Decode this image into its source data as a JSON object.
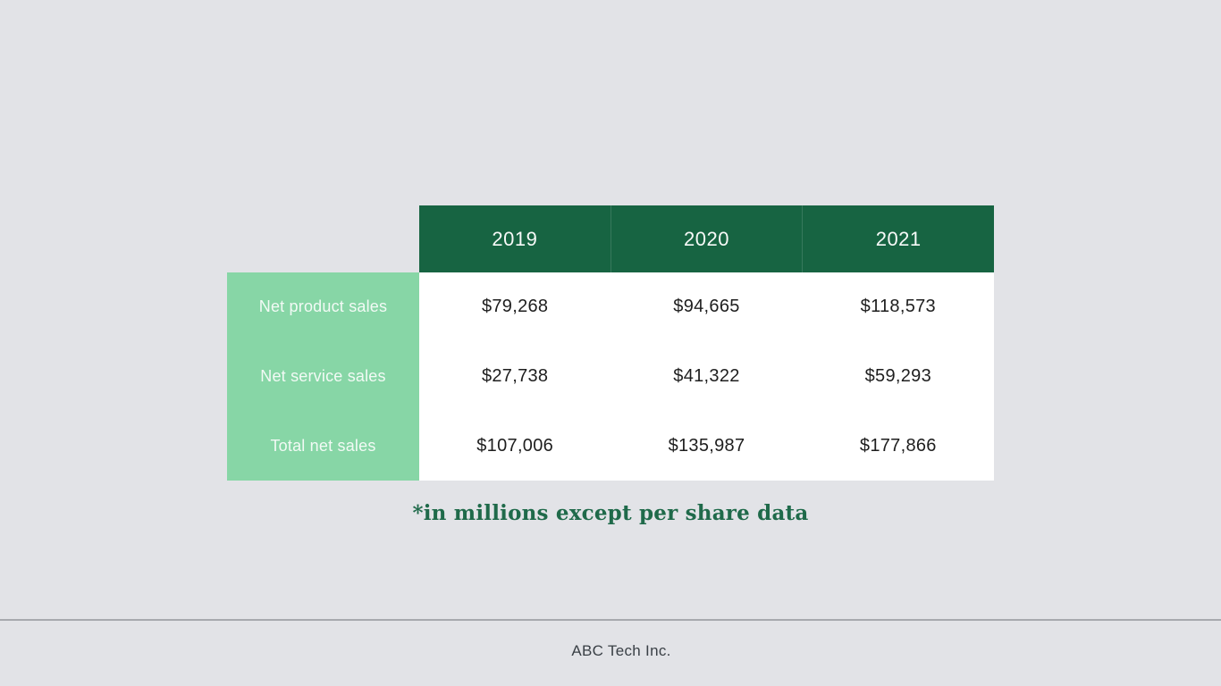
{
  "slide": {
    "footnote": "*in millions except per share data",
    "footer_company": "ABC Tech Inc."
  },
  "table": {
    "columns": [
      "2019",
      "2020",
      "2021"
    ],
    "rows": [
      {
        "label": "Net product sales",
        "values": [
          "$79,268",
          "$94,665",
          "$118,573"
        ]
      },
      {
        "label": "Net service sales",
        "values": [
          "$27,738",
          "$41,322",
          "$59,293"
        ]
      },
      {
        "label": "Total net sales",
        "values": [
          "$107,006",
          "$135,987",
          "$177,866"
        ]
      }
    ]
  },
  "colors": {
    "background": "#E2E3E7",
    "header_green": "#176442",
    "label_green": "#87D6A6",
    "header_text": "#F7FAF8",
    "label_text": "#F2FAF5",
    "body_text": "#1E1E1E",
    "footnote_green": "#1F6A4A",
    "footer_text": "#3A4046",
    "divider_gray": "#A7A9AE"
  },
  "chart_data": {
    "type": "table",
    "title": "",
    "columns": [
      "2019",
      "2020",
      "2021"
    ],
    "row_labels": [
      "Net product sales",
      "Net service sales",
      "Total net sales"
    ],
    "values_millions_usd": [
      [
        79268,
        94665,
        118573
      ],
      [
        27738,
        41322,
        59293
      ],
      [
        107006,
        135987,
        177866
      ]
    ],
    "note": "*in millions except per share data"
  }
}
